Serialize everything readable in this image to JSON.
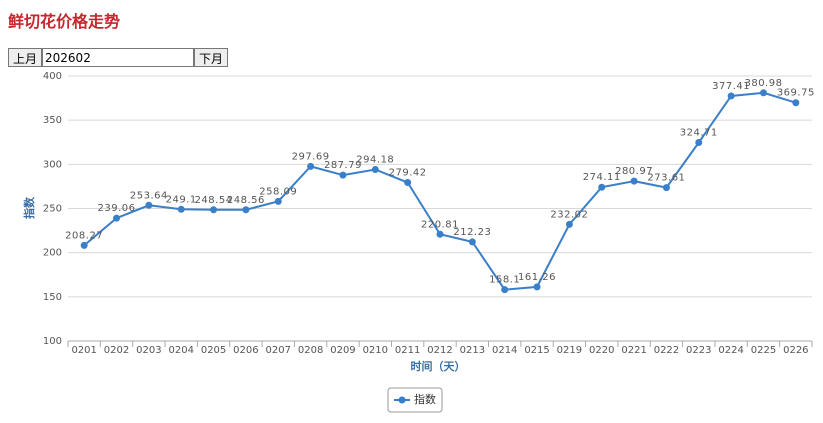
{
  "controls": {
    "prev": "上月",
    "month": "202602",
    "next": "下月"
  },
  "chart_data": {
    "type": "line",
    "title": "鲜切花价格走势",
    "x_label": "时间（天）",
    "y_label": "指数",
    "categories": [
      "0201",
      "0202",
      "0203",
      "0204",
      "0205",
      "0206",
      "0207",
      "0208",
      "0209",
      "0210",
      "0211",
      "0212",
      "0213",
      "0214",
      "0215",
      "0219",
      "0220",
      "0221",
      "0222",
      "0223",
      "0224",
      "0225",
      "0226"
    ],
    "series": [
      {
        "name": "指数",
        "color": "#3a7fc9",
        "values": [
          208.27,
          239.06,
          253.64,
          249.1,
          248.54,
          248.56,
          258.09,
          297.69,
          287.79,
          294.18,
          279.42,
          220.81,
          212.23,
          158.1,
          161.26,
          232.02,
          274.11,
          280.97,
          273.61,
          324.71,
          377.41,
          380.98,
          369.75
        ]
      }
    ],
    "ylim": [
      100,
      400
    ],
    "yticks": [
      100,
      150,
      200,
      250,
      300,
      350,
      400
    ],
    "grid": true,
    "legend": "bottom"
  }
}
